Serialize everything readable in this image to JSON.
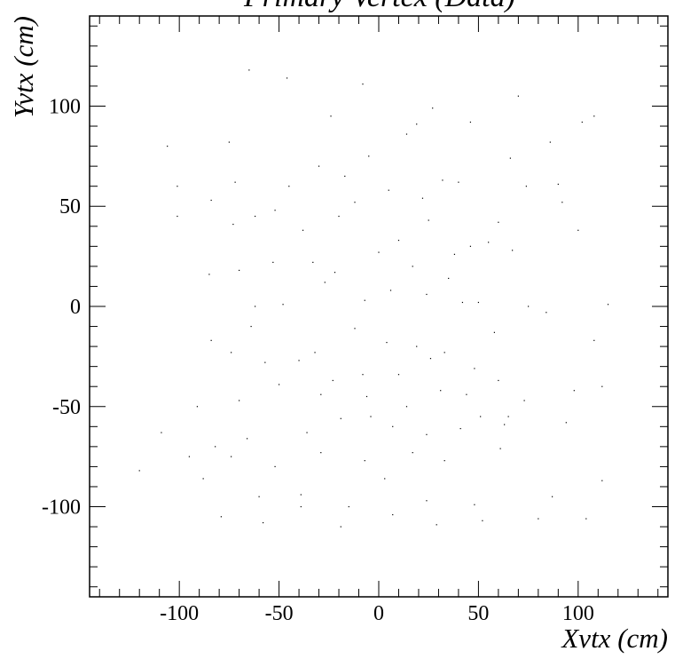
{
  "chart_data": {
    "type": "scatter",
    "title": "Primary Vertex (Data)",
    "xlabel": "Xvtx (cm)",
    "ylabel": "Yvtx (cm)",
    "xlim": [
      -145,
      145
    ],
    "ylim": [
      -145,
      145
    ],
    "xticks": [
      -100,
      -50,
      0,
      50,
      100
    ],
    "yticks": [
      -100,
      -50,
      0,
      50,
      100
    ],
    "xtick_labels": [
      "-100",
      "-50",
      "0",
      "50",
      "100"
    ],
    "ytick_labels": [
      "-100",
      "-50",
      "0",
      "50",
      "100"
    ],
    "grid": false,
    "marker_color": "#000000",
    "series": [
      {
        "x": [
          -65,
          -46,
          -8,
          -106,
          -75,
          -24,
          19,
          27,
          46,
          70,
          102,
          108,
          86,
          -101,
          -72,
          -30,
          -5,
          14,
          32,
          -84,
          -62,
          -45,
          -17,
          5,
          22,
          40,
          66,
          74,
          90,
          -101,
          -73,
          -52,
          -38,
          -20,
          -12,
          10,
          25,
          46,
          60,
          92,
          100,
          -85,
          -70,
          -53,
          -33,
          -22,
          0,
          17,
          38,
          55,
          67,
          -62,
          -48,
          -27,
          -7,
          6,
          24,
          35,
          42,
          50,
          75,
          84,
          115,
          -84,
          -64,
          -32,
          -12,
          4,
          19,
          33,
          58,
          108,
          -74,
          -57,
          -40,
          -23,
          -8,
          10,
          26,
          48,
          60,
          98,
          -91,
          -70,
          -50,
          -29,
          -6,
          14,
          31,
          44,
          51,
          65,
          73,
          112,
          -109,
          -82,
          -66,
          -36,
          -19,
          -4,
          7,
          24,
          41,
          63,
          94,
          -95,
          -74,
          -52,
          -29,
          -7,
          17,
          33,
          61,
          -120,
          -88,
          -60,
          -39,
          -15,
          3,
          24,
          48,
          87,
          112,
          -79,
          -58,
          -39,
          -19,
          7,
          29,
          52,
          80,
          104
        ],
        "y": [
          118,
          114,
          111,
          80,
          82,
          95,
          91,
          99,
          92,
          105,
          92,
          95,
          82,
          60,
          62,
          70,
          75,
          86,
          63,
          53,
          45,
          60,
          65,
          58,
          54,
          62,
          74,
          60,
          61,
          45,
          41,
          48,
          38,
          45,
          52,
          33,
          43,
          30,
          42,
          52,
          38,
          16,
          18,
          22,
          22,
          17,
          27,
          20,
          26,
          32,
          28,
          0,
          1,
          12,
          3,
          8,
          6,
          14,
          2,
          2,
          0,
          -3,
          1,
          -17,
          -10,
          -23,
          -11,
          -18,
          -20,
          -23,
          -13,
          -17,
          -23,
          -28,
          -27,
          -37,
          -34,
          -34,
          -26,
          -31,
          -37,
          -42,
          -50,
          -47,
          -39,
          -44,
          -45,
          -50,
          -42,
          -44,
          -55,
          -55,
          -47,
          -40,
          -63,
          -70,
          -66,
          -63,
          -56,
          -55,
          -60,
          -64,
          -61,
          -59,
          -58,
          -75,
          -75,
          -80,
          -73,
          -77,
          -73,
          -77,
          -71,
          -82,
          -86,
          -95,
          -94,
          -100,
          -86,
          -97,
          -99,
          -95,
          -87,
          -105,
          -108,
          -100,
          -110,
          -104,
          -109,
          -107,
          -106,
          -106
        ]
      }
    ]
  }
}
